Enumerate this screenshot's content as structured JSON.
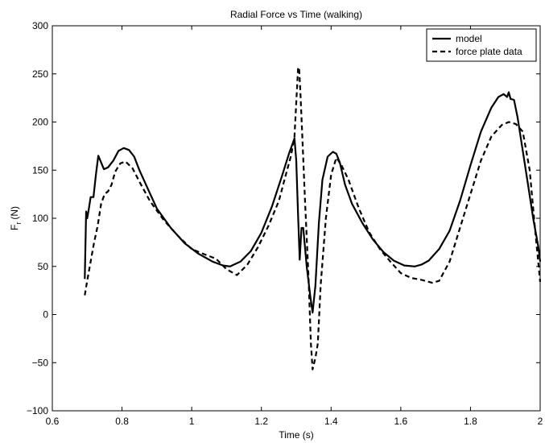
{
  "chart_data": {
    "type": "line",
    "title": "Radial Force vs Time (walking)",
    "xlabel": "Time (s)",
    "ylabel_main": "F",
    "ylabel_sub": "r",
    "ylabel_unit": "(N)",
    "xlim": [
      0.6,
      2.0
    ],
    "ylim": [
      -100,
      300
    ],
    "xticks": [
      0.6,
      0.8,
      1.0,
      1.2,
      1.4,
      1.6,
      1.8,
      2.0
    ],
    "xtick_labels": [
      "0.6",
      "0.8",
      "1",
      "1.2",
      "1.4",
      "1.6",
      "1.8",
      "2"
    ],
    "yticks": [
      -100,
      -50,
      0,
      50,
      100,
      150,
      200,
      250,
      300
    ],
    "ytick_labels": [
      "−100",
      "−50",
      "0",
      "50",
      "100",
      "150",
      "200",
      "250",
      "300"
    ],
    "grid": false,
    "legend_position": "top-right",
    "series": [
      {
        "name": "model",
        "style": "solid",
        "color": "#000000",
        "x": [
          0.693,
          0.697,
          0.7,
          0.705,
          0.71,
          0.718,
          0.725,
          0.732,
          0.74,
          0.748,
          0.76,
          0.775,
          0.79,
          0.805,
          0.82,
          0.835,
          0.85,
          0.875,
          0.9,
          0.94,
          0.98,
          1.02,
          1.06,
          1.09,
          1.11,
          1.14,
          1.17,
          1.2,
          1.23,
          1.26,
          1.28,
          1.29,
          1.295,
          1.3,
          1.305,
          1.31,
          1.315,
          1.32,
          1.33,
          1.34,
          1.347,
          1.355,
          1.365,
          1.375,
          1.39,
          1.405,
          1.415,
          1.425,
          1.44,
          1.46,
          1.49,
          1.52,
          1.55,
          1.58,
          1.61,
          1.64,
          1.66,
          1.68,
          1.71,
          1.74,
          1.77,
          1.8,
          1.83,
          1.86,
          1.88,
          1.895,
          1.905,
          1.91,
          1.915,
          1.925,
          1.935,
          1.95,
          1.965,
          1.98,
          1.995,
          2.0
        ],
        "y": [
          37,
          107,
          100,
          110,
          122,
          122,
          145,
          165,
          158,
          151,
          153,
          160,
          170,
          173,
          171,
          164,
          150,
          130,
          110,
          90,
          74,
          63,
          55,
          51,
          50,
          55,
          66,
          85,
          112,
          145,
          168,
          178,
          183,
          160,
          105,
          57,
          90,
          90,
          50,
          20,
          2,
          30,
          95,
          140,
          164,
          169,
          167,
          158,
          135,
          115,
          95,
          78,
          65,
          56,
          51,
          50,
          52,
          56,
          68,
          87,
          118,
          155,
          190,
          215,
          226,
          229,
          226,
          231,
          224,
          223,
          205,
          170,
          135,
          100,
          70,
          55
        ]
      },
      {
        "name": "force plate data",
        "style": "dashed",
        "color": "#000000",
        "x": [
          0.693,
          0.7,
          0.71,
          0.72,
          0.73,
          0.74,
          0.75,
          0.76,
          0.77,
          0.78,
          0.795,
          0.81,
          0.83,
          0.85,
          0.88,
          0.92,
          0.96,
          1.0,
          1.04,
          1.07,
          1.1,
          1.13,
          1.16,
          1.19,
          1.22,
          1.25,
          1.27,
          1.285,
          1.295,
          1.3,
          1.305,
          1.308,
          1.312,
          1.318,
          1.325,
          1.335,
          1.342,
          1.347,
          1.355,
          1.362,
          1.37,
          1.385,
          1.4,
          1.415,
          1.43,
          1.45,
          1.48,
          1.51,
          1.54,
          1.57,
          1.6,
          1.63,
          1.66,
          1.69,
          1.71,
          1.74,
          1.77,
          1.8,
          1.83,
          1.86,
          1.89,
          1.91,
          1.93,
          1.95,
          1.97,
          1.985,
          2.0
        ],
        "y": [
          20,
          35,
          55,
          75,
          92,
          115,
          125,
          128,
          135,
          148,
          157,
          159,
          152,
          138,
          118,
          98,
          82,
          68,
          62,
          58,
          47,
          41,
          52,
          70,
          92,
          118,
          145,
          165,
          185,
          220,
          255,
          257,
          230,
          180,
          120,
          40,
          -30,
          -57,
          -45,
          -30,
          30,
          100,
          145,
          163,
          155,
          140,
          110,
          85,
          68,
          55,
          43,
          38,
          36,
          33,
          35,
          55,
          90,
          125,
          160,
          185,
          197,
          200,
          198,
          190,
          150,
          90,
          34
        ]
      }
    ]
  }
}
